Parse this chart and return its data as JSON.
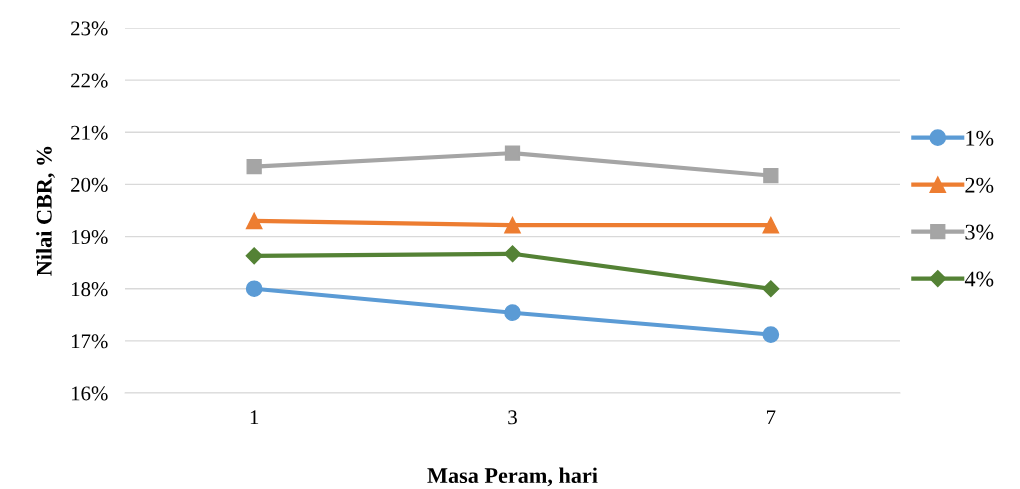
{
  "chart_data": {
    "type": "line",
    "xlabel": "Masa Peram, hari",
    "ylabel": "Nilai CBR, %",
    "categories": [
      "1",
      "3",
      "7"
    ],
    "series": [
      {
        "name": "1%",
        "color": "#5b9bd5",
        "marker": "circle",
        "values": [
          18.0,
          17.54,
          17.12
        ]
      },
      {
        "name": "2%",
        "color": "#ed7d31",
        "marker": "triangle",
        "values": [
          19.3,
          19.22,
          19.22
        ]
      },
      {
        "name": "3%",
        "color": "#a5a5a5",
        "marker": "square",
        "values": [
          20.34,
          20.6,
          20.17
        ]
      },
      {
        "name": "4%",
        "color": "#548235",
        "marker": "diamond",
        "values": [
          18.63,
          18.67,
          18.0
        ]
      }
    ],
    "ylim": [
      16,
      23
    ],
    "yticks": [
      {
        "value": 16,
        "label": "16%"
      },
      {
        "value": 17,
        "label": "17%"
      },
      {
        "value": 18,
        "label": "18%"
      },
      {
        "value": 19,
        "label": "19%"
      },
      {
        "value": 20,
        "label": "20%"
      },
      {
        "value": 21,
        "label": "21%"
      },
      {
        "value": 22,
        "label": "22%"
      },
      {
        "value": 23,
        "label": "23%"
      }
    ],
    "grid": "y",
    "legend": "right"
  }
}
